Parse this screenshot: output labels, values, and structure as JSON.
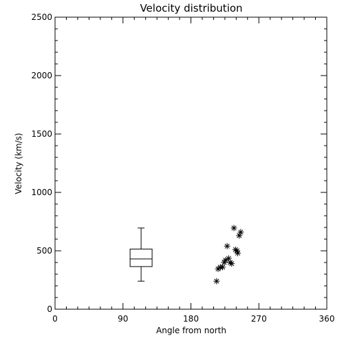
{
  "chart_data": {
    "type": "scatter",
    "title": "Velocity distribution",
    "xlabel": "Angle from north",
    "ylabel": "Velocity (km/s)",
    "xlim": [
      0,
      360
    ],
    "ylim": [
      0,
      2500
    ],
    "xticks": [
      0,
      90,
      180,
      270,
      360
    ],
    "yticks": [
      0,
      500,
      1000,
      1500,
      2000,
      2500
    ],
    "x_minor_step": 15,
    "y_minor_step": 100,
    "grid": false,
    "marker": "asterisk",
    "colors": {
      "ink": "#000000",
      "background": "#ffffff"
    },
    "boxplot": {
      "x": 114,
      "min": 240,
      "q1": 365,
      "median": 430,
      "q3": 515,
      "max": 695
    },
    "series": [
      {
        "points": [
          {
            "x": 214,
            "y": 240
          },
          {
            "x": 216,
            "y": 345
          },
          {
            "x": 219,
            "y": 360
          },
          {
            "x": 222,
            "y": 360
          },
          {
            "x": 224,
            "y": 400
          },
          {
            "x": 226,
            "y": 420
          },
          {
            "x": 228,
            "y": 540
          },
          {
            "x": 230,
            "y": 435
          },
          {
            "x": 232,
            "y": 400
          },
          {
            "x": 234,
            "y": 390
          },
          {
            "x": 237,
            "y": 695
          },
          {
            "x": 239,
            "y": 510
          },
          {
            "x": 241,
            "y": 500
          },
          {
            "x": 242,
            "y": 480
          },
          {
            "x": 244,
            "y": 630
          },
          {
            "x": 246,
            "y": 660
          }
        ]
      }
    ]
  }
}
